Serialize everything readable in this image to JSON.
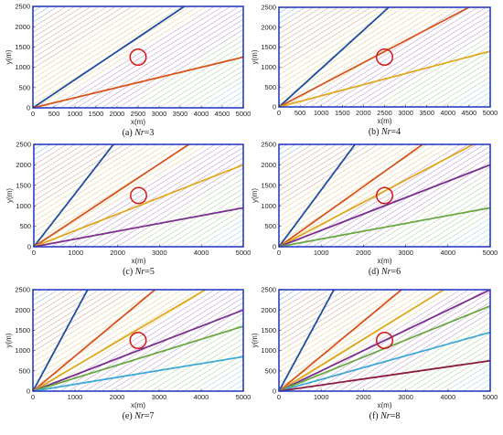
{
  "chart_data": [
    {
      "type": "line",
      "caption_label": "(a)",
      "caption_var": "Nr",
      "caption_value": "=3",
      "xlabel": "x(m)",
      "ylabel": "y(m)",
      "xlim": [
        0,
        5000
      ],
      "ylim": [
        0,
        2500
      ],
      "xticks": [
        "0",
        "500",
        "1000",
        "1500",
        "2000",
        "2500",
        "3000",
        "3500",
        "4000",
        "4500",
        "5000"
      ],
      "yticks": [
        "0",
        "500",
        "1000",
        "1500",
        "2000",
        "2500"
      ],
      "series": [
        {
          "color": "#1f4e9e",
          "x": [
            0,
            3600
          ],
          "y": [
            0,
            2500
          ]
        },
        {
          "color": "#d9541c",
          "x": [
            0,
            5000
          ],
          "y": [
            0,
            1250
          ]
        }
      ],
      "circle": {
        "x": 2500,
        "y": 1250,
        "r": 190
      }
    },
    {
      "type": "line",
      "caption_label": "(b)",
      "caption_var": "Nr",
      "caption_value": "=4",
      "xlabel": "x(m)",
      "ylabel": "y(m)",
      "xlim": [
        0,
        5000
      ],
      "ylim": [
        0,
        2500
      ],
      "xticks": [
        "0",
        "500",
        "1000",
        "1500",
        "2000",
        "2500",
        "3000",
        "3500",
        "4000",
        "4500",
        "5000"
      ],
      "yticks": [
        "0",
        "500",
        "1000",
        "1500",
        "2000",
        "2500"
      ],
      "series": [
        {
          "color": "#1f4e9e",
          "x": [
            0,
            2600
          ],
          "y": [
            0,
            2500
          ]
        },
        {
          "color": "#d9541c",
          "x": [
            0,
            4500
          ],
          "y": [
            0,
            2500
          ]
        },
        {
          "color": "#e0a81c",
          "x": [
            0,
            5000
          ],
          "y": [
            0,
            1400
          ]
        }
      ],
      "circle": {
        "x": 2500,
        "y": 1250,
        "r": 190
      }
    },
    {
      "type": "line",
      "caption_label": "(c)",
      "caption_var": "Nr",
      "caption_value": "=5",
      "xlabel": "x(m)",
      "ylabel": "y(m)",
      "xlim": [
        0,
        5000
      ],
      "ylim": [
        0,
        2500
      ],
      "xticks": [
        "0",
        "1000",
        "2000",
        "3000",
        "4000",
        "5000"
      ],
      "yticks": [
        "0",
        "500",
        "1000",
        "1500",
        "2000",
        "2500"
      ],
      "series": [
        {
          "color": "#1f4e9e",
          "x": [
            0,
            1900
          ],
          "y": [
            0,
            2500
          ]
        },
        {
          "color": "#d9541c",
          "x": [
            0,
            3700
          ],
          "y": [
            0,
            2500
          ]
        },
        {
          "color": "#e0a81c",
          "x": [
            0,
            5000
          ],
          "y": [
            0,
            2000
          ]
        },
        {
          "color": "#7b2f8f",
          "x": [
            0,
            5000
          ],
          "y": [
            0,
            950
          ]
        }
      ],
      "circle": {
        "x": 2500,
        "y": 1250,
        "r": 190
      }
    },
    {
      "type": "line",
      "caption_label": "(d)",
      "caption_var": "Nr",
      "caption_value": "=6",
      "xlabel": "x(m)",
      "ylabel": "y(m)",
      "xlim": [
        0,
        5000
      ],
      "ylim": [
        0,
        2500
      ],
      "xticks": [
        "0",
        "1000",
        "2000",
        "3000",
        "4000",
        "5000"
      ],
      "yticks": [
        "0",
        "500",
        "1000",
        "1500",
        "2000",
        "2500"
      ],
      "series": [
        {
          "color": "#1f4e9e",
          "x": [
            0,
            1800
          ],
          "y": [
            0,
            2500
          ]
        },
        {
          "color": "#d9541c",
          "x": [
            0,
            3400
          ],
          "y": [
            0,
            2500
          ]
        },
        {
          "color": "#e0a81c",
          "x": [
            0,
            4600
          ],
          "y": [
            0,
            2500
          ]
        },
        {
          "color": "#7b2f8f",
          "x": [
            0,
            5000
          ],
          "y": [
            0,
            2000
          ]
        },
        {
          "color": "#6aa843",
          "x": [
            0,
            5000
          ],
          "y": [
            0,
            950
          ]
        }
      ],
      "circle": {
        "x": 2500,
        "y": 1250,
        "r": 190
      }
    },
    {
      "type": "line",
      "caption_label": "(e)",
      "caption_var": "Nr",
      "caption_value": "=7",
      "xlabel": "x(m)",
      "ylabel": "y(m)",
      "xlim": [
        0,
        5000
      ],
      "ylim": [
        0,
        2500
      ],
      "xticks": [
        "0",
        "1000",
        "2000",
        "3000",
        "4000",
        "5000"
      ],
      "yticks": [
        "0",
        "500",
        "1000",
        "1500",
        "2000",
        "2500"
      ],
      "series": [
        {
          "color": "#1f4e9e",
          "x": [
            0,
            1300
          ],
          "y": [
            0,
            2500
          ]
        },
        {
          "color": "#d9541c",
          "x": [
            0,
            2900
          ],
          "y": [
            0,
            2500
          ]
        },
        {
          "color": "#e0a81c",
          "x": [
            0,
            4100
          ],
          "y": [
            0,
            2500
          ]
        },
        {
          "color": "#7b2f8f",
          "x": [
            0,
            5000
          ],
          "y": [
            0,
            2000
          ]
        },
        {
          "color": "#6aa843",
          "x": [
            0,
            5000
          ],
          "y": [
            0,
            1600
          ]
        },
        {
          "color": "#3fa9d6",
          "x": [
            0,
            5000
          ],
          "y": [
            0,
            850
          ]
        }
      ],
      "circle": {
        "x": 2500,
        "y": 1250,
        "r": 190
      }
    },
    {
      "type": "line",
      "caption_label": "(f)",
      "caption_var": "Nr",
      "caption_value": "=8",
      "xlabel": "x(m)",
      "ylabel": "y(m)",
      "xlim": [
        0,
        5000
      ],
      "ylim": [
        0,
        2500
      ],
      "xticks": [
        "0",
        "1000",
        "2000",
        "3000",
        "4000",
        "5000"
      ],
      "yticks": [
        "0",
        "500",
        "1000",
        "1500",
        "2000",
        "2500"
      ],
      "series": [
        {
          "color": "#1f4e9e",
          "x": [
            0,
            1300
          ],
          "y": [
            0,
            2500
          ]
        },
        {
          "color": "#d9541c",
          "x": [
            0,
            2900
          ],
          "y": [
            0,
            2500
          ]
        },
        {
          "color": "#e0a81c",
          "x": [
            0,
            3900
          ],
          "y": [
            0,
            2500
          ]
        },
        {
          "color": "#7b2f8f",
          "x": [
            0,
            5000
          ],
          "y": [
            0,
            2500
          ]
        },
        {
          "color": "#6aa843",
          "x": [
            0,
            5000
          ],
          "y": [
            0,
            2100
          ]
        },
        {
          "color": "#3fa9d6",
          "x": [
            0,
            5000
          ],
          "y": [
            0,
            1450
          ]
        },
        {
          "color": "#8a1c3c",
          "x": [
            0,
            5000
          ],
          "y": [
            0,
            750
          ]
        }
      ],
      "circle": {
        "x": 2500,
        "y": 1250,
        "r": 190
      }
    }
  ]
}
